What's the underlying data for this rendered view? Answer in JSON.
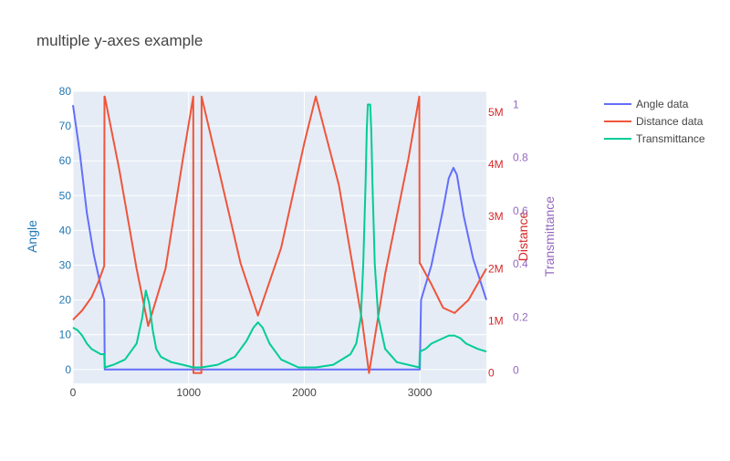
{
  "chart_data": {
    "type": "line",
    "title": "multiple y-axes example",
    "xlabel": "",
    "xlim": [
      0,
      3575
    ],
    "x_ticks": [
      0,
      1000,
      2000,
      3000
    ],
    "grid": true,
    "legend_position": "top-right",
    "colors": {
      "plot_bg": "#e5ecf6",
      "grid": "#ffffff",
      "text": "#444444",
      "angle_axis": "#1f77b4",
      "distance_axis": "#d62728",
      "transmittance_axis": "#9467bd"
    },
    "axes": {
      "angle": {
        "label": "Angle",
        "range": [
          -4,
          80
        ],
        "ticks": [
          0,
          10,
          20,
          30,
          40,
          50,
          60,
          70,
          80
        ],
        "tick_labels": [
          "0",
          "10",
          "20",
          "30",
          "40",
          "50",
          "60",
          "70",
          "80"
        ]
      },
      "distance": {
        "label": "Distance",
        "range": [
          -200000,
          5400000
        ],
        "ticks": [
          0,
          1000000,
          2000000,
          3000000,
          4000000,
          5000000
        ],
        "tick_labels": [
          "0",
          "1M",
          "2M",
          "3M",
          "4M",
          "5M"
        ]
      },
      "transmittance": {
        "label": "Transmittance",
        "range": [
          -0.05,
          1.05
        ],
        "ticks": [
          0,
          0.2,
          0.4,
          0.6,
          0.8,
          1
        ],
        "tick_labels": [
          "0",
          "0.2",
          "0.4",
          "0.6",
          "0.8",
          "1"
        ]
      }
    },
    "series": [
      {
        "name": "Angle data",
        "axis": "angle",
        "color": "#636efa",
        "x": [
          0,
          60,
          120,
          180,
          240,
          270,
          275,
          1000,
          2000,
          2990,
          3000,
          3010,
          3100,
          3200,
          3250,
          3290,
          3320,
          3380,
          3460,
          3575
        ],
        "y": [
          76,
          62,
          45,
          33,
          24,
          20,
          0,
          0,
          0,
          0,
          0,
          20,
          30,
          46,
          55,
          58,
          56,
          44,
          32,
          20
        ]
      },
      {
        "name": "Distance data",
        "axis": "distance",
        "color": "#ef553b",
        "x": [
          0,
          80,
          160,
          220,
          270,
          272,
          275,
          400,
          550,
          650,
          800,
          950,
          1040,
          1042,
          1110,
          1112,
          1250,
          1450,
          1600,
          1800,
          2000,
          2100,
          2300,
          2500,
          2560,
          2700,
          2900,
          2995,
          2998,
          3002,
          3100,
          3200,
          3300,
          3420,
          3575
        ],
        "y": [
          1020000,
          1200000,
          1450000,
          1750000,
          2050000,
          5300000,
          5300000,
          3900000,
          2000000,
          900000,
          2000000,
          4100000,
          5300000,
          0,
          0,
          5300000,
          4000000,
          2100000,
          1100000,
          2400000,
          4400000,
          5300000,
          3600000,
          1000000,
          0,
          1900000,
          4100000,
          5300000,
          2100000,
          2100000,
          1700000,
          1250000,
          1150000,
          1400000,
          2000000
        ]
      },
      {
        "name": "Transmittance",
        "axis": "transmittance",
        "color": "#00cc96",
        "x": [
          0,
          40,
          80,
          120,
          160,
          200,
          240,
          270,
          275,
          350,
          450,
          550,
          600,
          630,
          660,
          690,
          720,
          760,
          850,
          950,
          1040,
          1110,
          1250,
          1400,
          1500,
          1560,
          1600,
          1640,
          1700,
          1800,
          1950,
          2100,
          2250,
          2400,
          2450,
          2490,
          2510,
          2530,
          2540,
          2550,
          2560,
          2570,
          2580,
          2590,
          2610,
          2640,
          2700,
          2800,
          2995,
          3000,
          3050,
          3100,
          3200,
          3250,
          3300,
          3350,
          3400,
          3500,
          3575
        ],
        "y": [
          0.16,
          0.15,
          0.13,
          0.1,
          0.08,
          0.07,
          0.06,
          0.06,
          0.01,
          0.02,
          0.04,
          0.1,
          0.2,
          0.3,
          0.25,
          0.15,
          0.08,
          0.05,
          0.03,
          0.02,
          0.01,
          0.01,
          0.02,
          0.05,
          0.11,
          0.16,
          0.18,
          0.16,
          0.1,
          0.04,
          0.01,
          0.01,
          0.02,
          0.06,
          0.1,
          0.2,
          0.4,
          0.7,
          0.9,
          1.0,
          1.0,
          1.0,
          0.9,
          0.7,
          0.4,
          0.2,
          0.08,
          0.03,
          0.01,
          0.07,
          0.08,
          0.1,
          0.12,
          0.13,
          0.13,
          0.12,
          0.1,
          0.08,
          0.07
        ]
      }
    ]
  }
}
